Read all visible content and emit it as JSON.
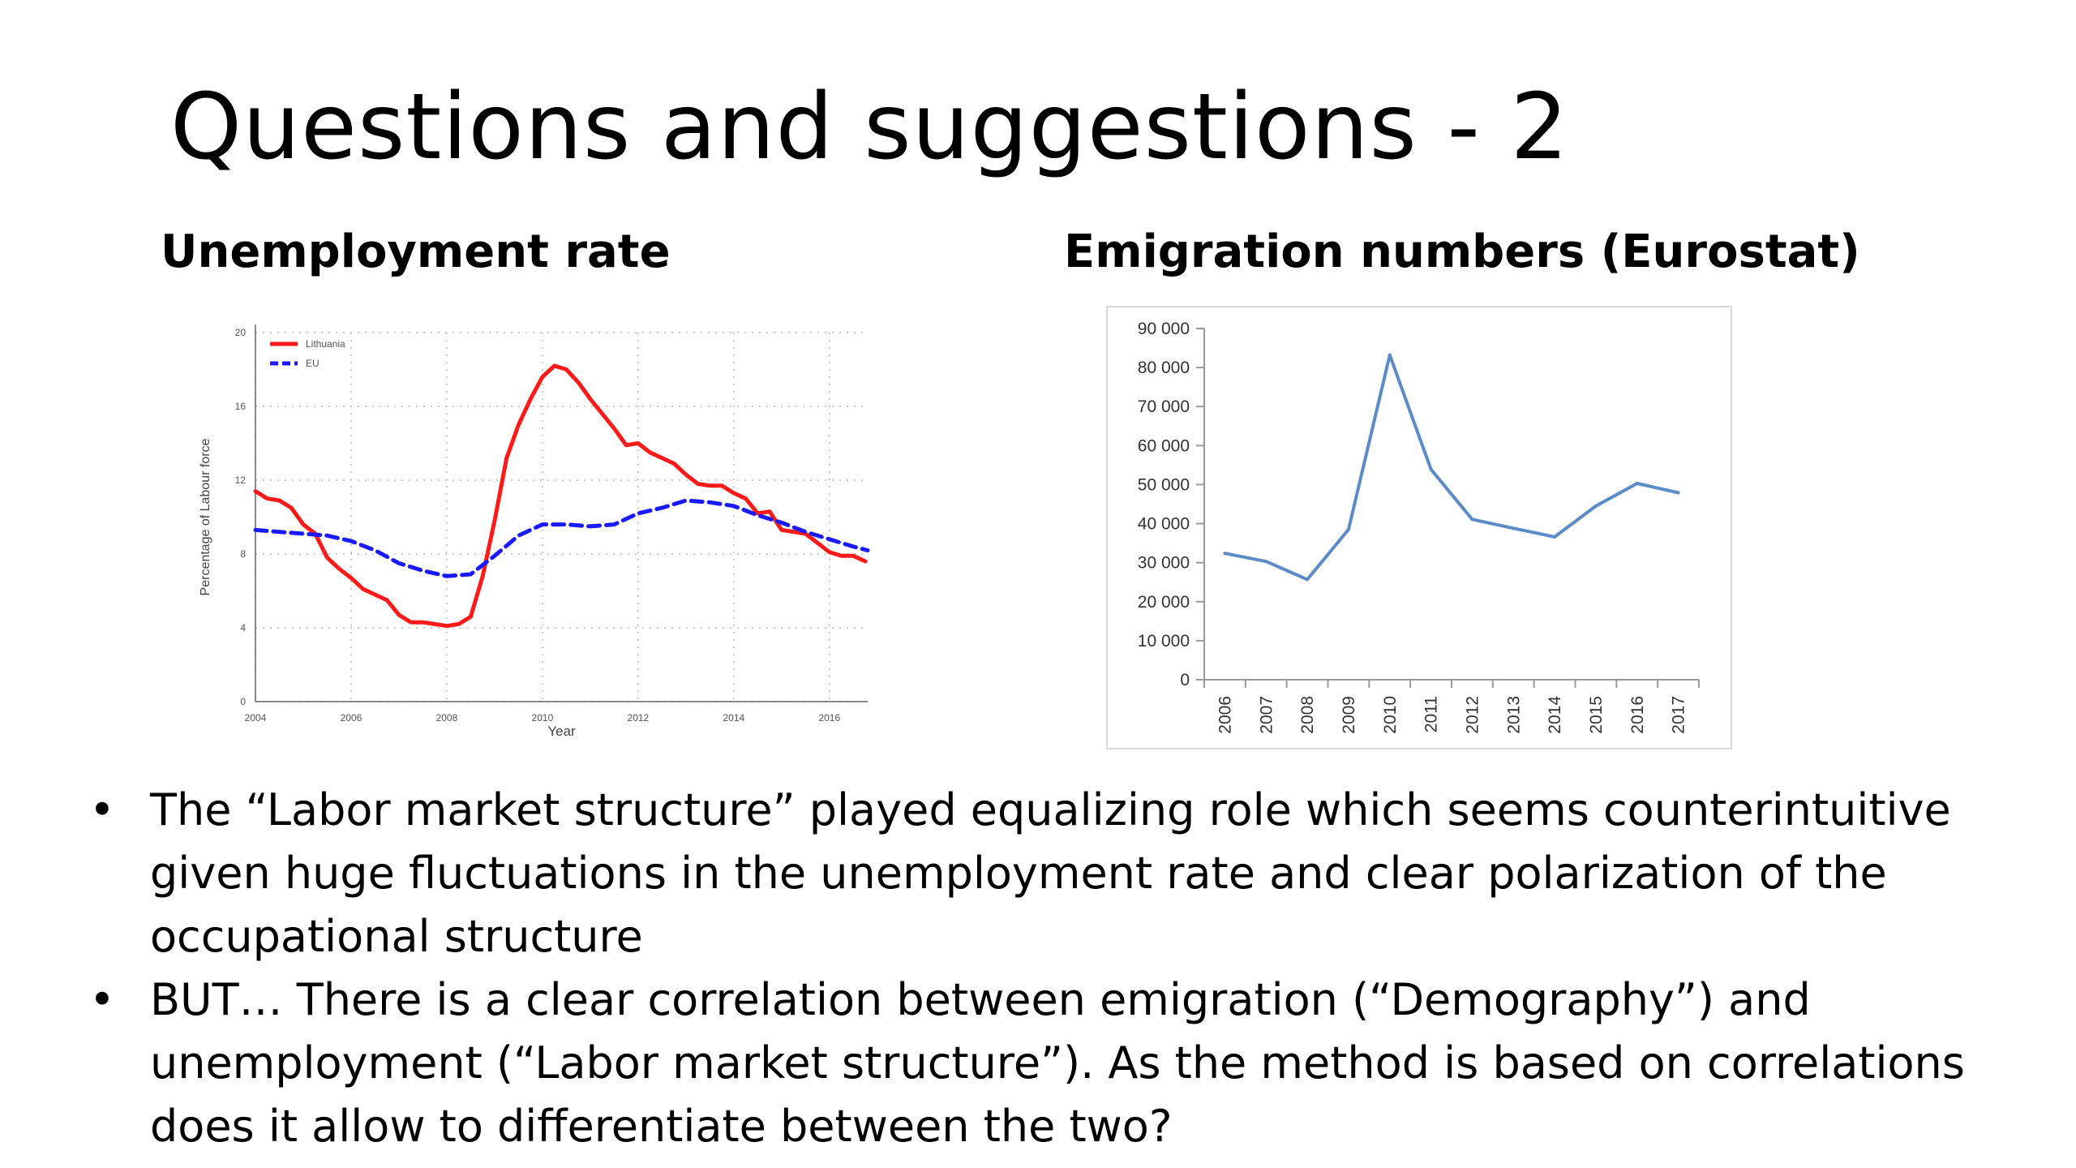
{
  "slide": {
    "title": "Questions and suggestions - 2",
    "bullets": [
      "The “Labor market structure” played equalizing role which seems counterintuitive given huge fluctuations in the unemployment rate and clear polarization of the occupational structure",
      "BUT… There is a clear correlation between emigration (“Demography”) and unemployment (“Labor market structure”). As  the method is based on correlations does it allow to differentiate between the two?"
    ],
    "bullet_symbol": "•"
  },
  "chart_data": [
    {
      "type": "line",
      "title": "Unemployment rate",
      "xlabel": "Year",
      "ylabel": "Percentage of Labour force",
      "xlim": [
        2004,
        2016.8
      ],
      "ylim": [
        0,
        20
      ],
      "x_ticks": [
        "2004",
        "2006",
        "2008",
        "2010",
        "2012",
        "2014",
        "2016"
      ],
      "y_ticks": [
        "0",
        "4",
        "8",
        "12",
        "16",
        "20"
      ],
      "grid": true,
      "legend_position": "top-left",
      "series": [
        {
          "name": "Lithuania",
          "color": "#ff1a1a",
          "style": "solid",
          "points": [
            [
              2004.0,
              11.4
            ],
            [
              2004.25,
              11.0
            ],
            [
              2004.5,
              10.9
            ],
            [
              2004.75,
              10.5
            ],
            [
              2005.0,
              9.6
            ],
            [
              2005.25,
              9.1
            ],
            [
              2005.5,
              7.8
            ],
            [
              2005.75,
              7.2
            ],
            [
              2006.0,
              6.7
            ],
            [
              2006.25,
              6.1
            ],
            [
              2006.5,
              5.8
            ],
            [
              2006.75,
              5.5
            ],
            [
              2007.0,
              4.7
            ],
            [
              2007.25,
              4.3
            ],
            [
              2007.5,
              4.3
            ],
            [
              2007.75,
              4.2
            ],
            [
              2008.0,
              4.1
            ],
            [
              2008.25,
              4.2
            ],
            [
              2008.5,
              4.6
            ],
            [
              2008.75,
              6.8
            ],
            [
              2009.0,
              9.8
            ],
            [
              2009.25,
              13.2
            ],
            [
              2009.5,
              15.0
            ],
            [
              2009.75,
              16.4
            ],
            [
              2010.0,
              17.6
            ],
            [
              2010.25,
              18.2
            ],
            [
              2010.5,
              18.0
            ],
            [
              2010.75,
              17.3
            ],
            [
              2011.0,
              16.4
            ],
            [
              2011.25,
              15.6
            ],
            [
              2011.5,
              14.8
            ],
            [
              2011.75,
              13.9
            ],
            [
              2012.0,
              14.0
            ],
            [
              2012.25,
              13.5
            ],
            [
              2012.5,
              13.2
            ],
            [
              2012.75,
              12.9
            ],
            [
              2013.0,
              12.3
            ],
            [
              2013.25,
              11.8
            ],
            [
              2013.5,
              11.7
            ],
            [
              2013.75,
              11.7
            ],
            [
              2014.0,
              11.3
            ],
            [
              2014.25,
              11.0
            ],
            [
              2014.5,
              10.2
            ],
            [
              2014.75,
              10.3
            ],
            [
              2015.0,
              9.3
            ],
            [
              2015.25,
              9.2
            ],
            [
              2015.5,
              9.1
            ],
            [
              2015.75,
              8.6
            ],
            [
              2016.0,
              8.1
            ],
            [
              2016.25,
              7.9
            ],
            [
              2016.5,
              7.9
            ],
            [
              2016.75,
              7.6
            ]
          ]
        },
        {
          "name": "EU",
          "color": "#1a1aff",
          "style": "dashed",
          "points": [
            [
              2004.0,
              9.3
            ],
            [
              2004.5,
              9.2
            ],
            [
              2005.0,
              9.1
            ],
            [
              2005.5,
              9.0
            ],
            [
              2006.0,
              8.7
            ],
            [
              2006.5,
              8.2
            ],
            [
              2007.0,
              7.5
            ],
            [
              2007.5,
              7.1
            ],
            [
              2008.0,
              6.8
            ],
            [
              2008.5,
              6.9
            ],
            [
              2009.0,
              7.9
            ],
            [
              2009.5,
              9.0
            ],
            [
              2010.0,
              9.6
            ],
            [
              2010.5,
              9.6
            ],
            [
              2011.0,
              9.5
            ],
            [
              2011.5,
              9.6
            ],
            [
              2012.0,
              10.2
            ],
            [
              2012.5,
              10.5
            ],
            [
              2013.0,
              10.9
            ],
            [
              2013.5,
              10.8
            ],
            [
              2014.0,
              10.6
            ],
            [
              2014.5,
              10.1
            ],
            [
              2015.0,
              9.7
            ],
            [
              2015.5,
              9.2
            ],
            [
              2016.0,
              8.8
            ],
            [
              2016.5,
              8.4
            ],
            [
              2016.8,
              8.2
            ]
          ]
        }
      ]
    },
    {
      "type": "line",
      "title": "Emigration numbers (Eurostat)",
      "xlabel": "",
      "ylabel": "",
      "categories": [
        "2006",
        "2007",
        "2008",
        "2009",
        "2010",
        "2011",
        "2012",
        "2013",
        "2014",
        "2015",
        "2016",
        "2017"
      ],
      "y_ticks": [
        "0",
        "10 000",
        "20 000",
        "30 000",
        "40 000",
        "50 000",
        "60 000",
        "70 000",
        "80 000",
        "90 000"
      ],
      "ylim": [
        0,
        90000
      ],
      "grid": false,
      "series": [
        {
          "color": "#5b8bc9",
          "values": [
            32390,
            30300,
            25700,
            38500,
            83200,
            53900,
            41100,
            38800,
            36600,
            44500,
            50300,
            47900
          ]
        }
      ]
    }
  ]
}
